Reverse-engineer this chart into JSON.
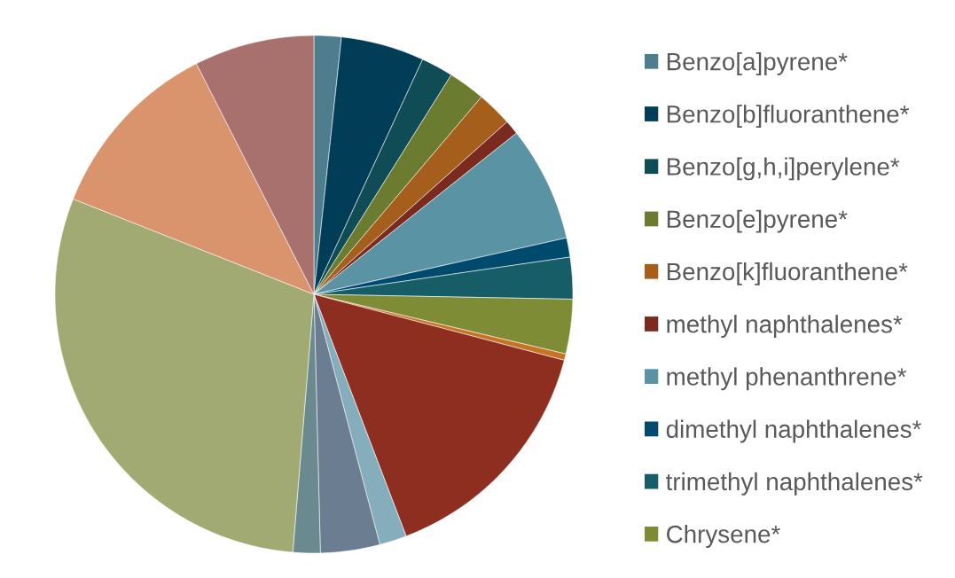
{
  "chart_data": {
    "type": "pie",
    "categories": [
      "Benzo[a]pyrene*",
      "Benzo[b]fluoranthene*",
      "Benzo[g,h,i]perylene*",
      "Benzo[e]pyrene*",
      "Benzo[k]fluoranthene*",
      "methyl naphthalenes*",
      "methyl phenanthrene*",
      "dimethyl naphthalenes*",
      "trimethyl naphthalenes*",
      "Chrysene*",
      null,
      null,
      null,
      null,
      null,
      null,
      null,
      null
    ],
    "values": [
      1.7,
      5.2,
      2.0,
      2.3,
      2.2,
      0.9,
      7.2,
      1.2,
      2.6,
      3.4,
      0.4,
      15.1,
      1.7,
      3.7,
      1.7,
      29.7,
      11.5,
      7.5
    ],
    "colors": [
      "#4e7d8d",
      "#023d57",
      "#0f4c55",
      "#6b7b2f",
      "#a55e1c",
      "#7a2a1e",
      "#5a93a3",
      "#004b6d",
      "#165d68",
      "#7e8c36",
      "#c87224",
      "#8d2e20",
      "#86adbb",
      "#6b7d91",
      "#6a8a90",
      "#a0aa72",
      "#d9946e",
      "#a8716d"
    ],
    "legend": "right"
  }
}
